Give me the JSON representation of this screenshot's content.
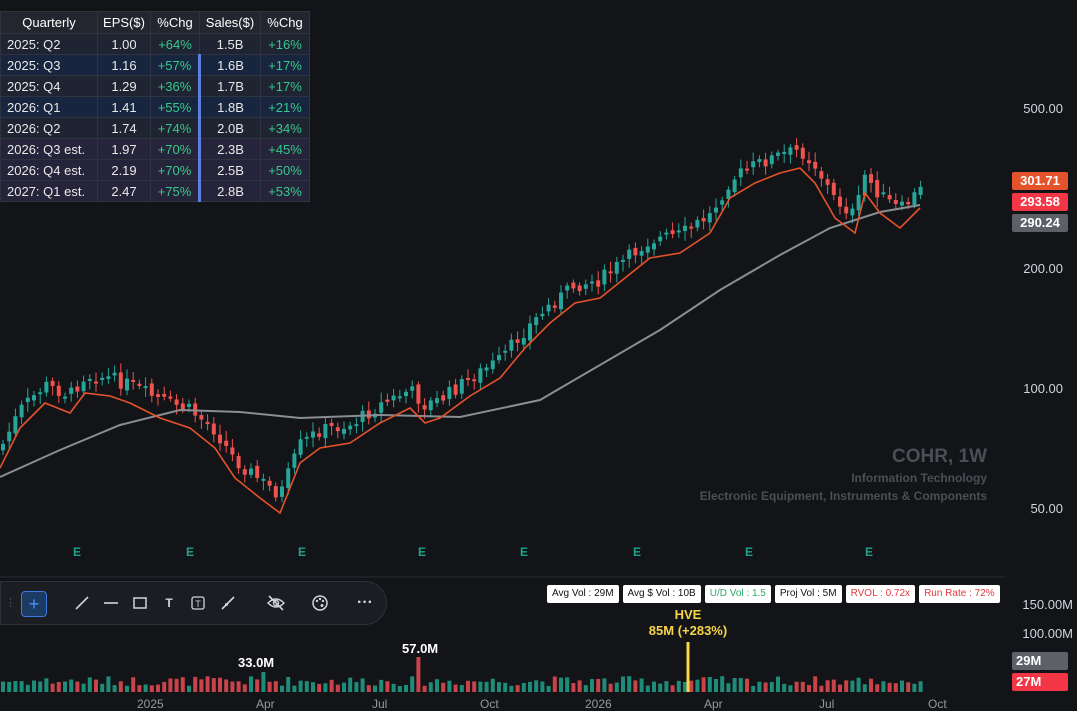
{
  "table": {
    "headers": [
      "Quarterly",
      "EPS($)",
      "%Chg",
      "Sales($)",
      "%Chg"
    ],
    "rows": [
      {
        "q": "2025: Q2",
        "eps": "1.00",
        "eps_chg": "+64%",
        "sales": "1.5B",
        "sales_chg": "+16%"
      },
      {
        "q": "2025: Q3",
        "eps": "1.16",
        "eps_chg": "+57%",
        "sales": "1.6B",
        "sales_chg": "+17%"
      },
      {
        "q": "2025: Q4",
        "eps": "1.29",
        "eps_chg": "+36%",
        "sales": "1.7B",
        "sales_chg": "+17%"
      },
      {
        "q": "2026: Q1",
        "eps": "1.41",
        "eps_chg": "+55%",
        "sales": "1.8B",
        "sales_chg": "+21%"
      },
      {
        "q": "2026: Q2",
        "eps": "1.74",
        "eps_chg": "+74%",
        "sales": "2.0B",
        "sales_chg": "+34%"
      },
      {
        "q": "2026: Q3 est.",
        "eps": "1.97",
        "eps_chg": "+70%",
        "sales": "2.3B",
        "sales_chg": "+45%"
      },
      {
        "q": "2026: Q4 est.",
        "eps": "2.19",
        "eps_chg": "+70%",
        "sales": "2.5B",
        "sales_chg": "+50%"
      },
      {
        "q": "2027: Q1 est.",
        "eps": "2.47",
        "eps_chg": "+75%",
        "sales": "2.8B",
        "sales_chg": "+53%"
      }
    ]
  },
  "symbol": {
    "title": "COHR, 1W",
    "sector": "Information Technology",
    "industry": "Electronic Equipment, Instruments & Components"
  },
  "price_axis": [
    "500.00",
    "200.00",
    "100.00",
    "50.00"
  ],
  "price_tags": [
    {
      "value": "301.71",
      "color": "#e4532b"
    },
    {
      "value": "293.58",
      "color": "#f23645"
    },
    {
      "value": "290.24",
      "color": "#5d6066"
    }
  ],
  "earnings_marker": "E",
  "volume_axis": [
    "150.00M",
    "100.00M"
  ],
  "volume_tags": [
    {
      "value": "29M",
      "color": "#5d6066"
    },
    {
      "value": "27M",
      "color": "#f23645"
    }
  ],
  "stats": [
    {
      "label": "Avg Vol : 29M",
      "tone": "normal"
    },
    {
      "label": "Avg $ Vol : 10B",
      "tone": "normal"
    },
    {
      "label": "U/D Vol : 1.5",
      "tone": "grn"
    },
    {
      "label": "Proj Vol : 5M",
      "tone": "normal"
    },
    {
      "label": "RVOL : 0.72x",
      "tone": "red"
    },
    {
      "label": "Run Rate : 72%",
      "tone": "red"
    }
  ],
  "volume_annotations": {
    "v1": "33.0M",
    "v2": "57.0M",
    "hve_title": "HVE",
    "hve_value": "85M (+283%)"
  },
  "x_axis": [
    "2025",
    "Apr",
    "Jul",
    "Oct",
    "2026",
    "Apr",
    "Jul",
    "Oct"
  ],
  "toolbar": [
    "crosshair-icon",
    "line-icon",
    "horizontal-line-icon",
    "rectangle-icon",
    "text-icon",
    "text-box-icon",
    "brush-icon",
    "eye-off-icon",
    "palette-icon",
    "more-icon"
  ],
  "colors": {
    "up": "#26a69a",
    "down": "#ef5350",
    "ma_short": "#e4532b",
    "ma_long": "#8a8d93",
    "hve": "#f7d54a"
  }
}
